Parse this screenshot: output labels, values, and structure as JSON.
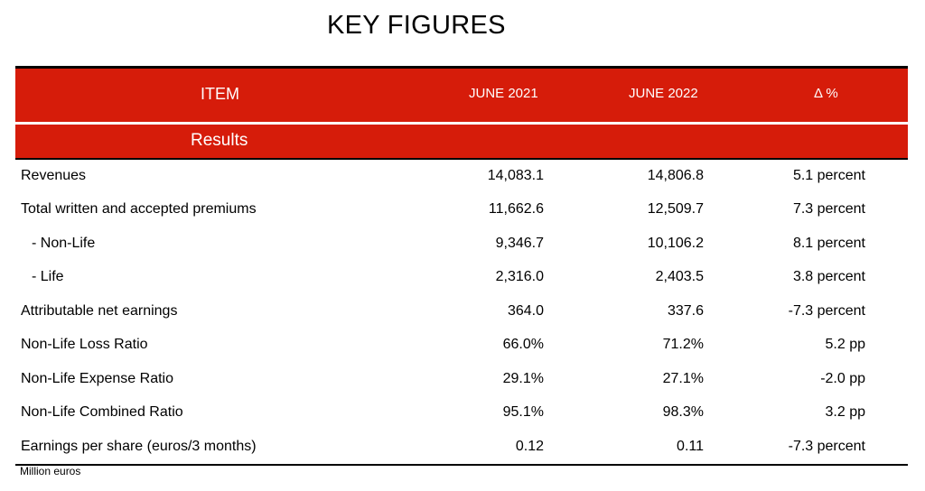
{
  "title": "KEY FIGURES",
  "header": {
    "item": "ITEM",
    "col1": "JUNE 2021",
    "col2": "JUNE 2022",
    "col3": "Δ %"
  },
  "section": "Results",
  "rows": [
    {
      "label": "Revenues",
      "v1": "14,083.1",
      "v2": "14,806.8",
      "v3": "5.1 percent"
    },
    {
      "label": "Total written and accepted premiums",
      "v1": "11,662.6",
      "v2": "12,509.7",
      "v3": "7.3 percent"
    },
    {
      "label": "  - Non-Life",
      "v1": "9,346.7",
      "v2": "10,106.2",
      "v3": "8.1 percent"
    },
    {
      "label": "  - Life",
      "v1": "2,316.0",
      "v2": "2,403.5",
      "v3": "3.8 percent"
    },
    {
      "label": "Attributable net earnings",
      "v1": "364.0",
      "v2": "337.6",
      "v3": "-7.3 percent"
    },
    {
      "label": "Non-Life Loss Ratio",
      "v1": "66.0%",
      "v2": "71.2%",
      "v3": "5.2 pp"
    },
    {
      "label": "Non-Life Expense Ratio",
      "v1": "29.1%",
      "v2": "27.1%",
      "v3": "-2.0 pp"
    },
    {
      "label": "Non-Life Combined Ratio",
      "v1": "95.1%",
      "v2": "98.3%",
      "v3": "3.2 pp"
    },
    {
      "label": "Earnings per share (euros/3 months)",
      "v1": "0.12",
      "v2": "0.11",
      "v3": "-7.3 percent"
    }
  ],
  "footnote": "Million euros"
}
